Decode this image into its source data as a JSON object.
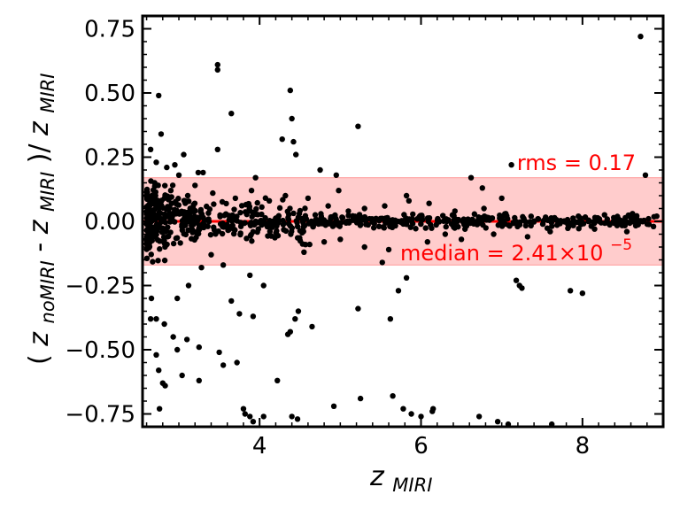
{
  "chart_data": {
    "type": "scatter",
    "xlabel_main": "z",
    "xlabel_sub": "MIRI",
    "ylabel": {
      "open": "(",
      "z1": "z",
      "sub1": "noMIRI",
      "minus": "-",
      "z2": "z",
      "sub2": "MIRI",
      "close": ")/",
      "z3": "z",
      "sub3": "MIRI"
    },
    "xlim": [
      2.55,
      9.0
    ],
    "ylim": [
      -0.8,
      0.8
    ],
    "x_ticks": [
      4,
      6,
      8
    ],
    "x_tick_labels": [
      "4",
      "6",
      "8"
    ],
    "y_ticks": [
      -0.75,
      -0.5,
      -0.25,
      0.0,
      0.25,
      0.5,
      0.75
    ],
    "y_tick_labels": [
      "−0.75",
      "−0.50",
      "−0.25",
      "0.00",
      "0.25",
      "0.50",
      "0.75"
    ],
    "rms": 0.17,
    "median_line_y": 0.0,
    "annotations": {
      "rms_text": "rms = 0.17",
      "median_text": "median = 2.41×10",
      "median_exp": "−5"
    },
    "colors": {
      "points": "#000000",
      "median_line": "#ff0000",
      "rms_band": "#ffcccc",
      "annotation": "#ff0000"
    },
    "points": [
      [
        8.72,
        0.72
      ],
      [
        3.48,
        0.61
      ],
      [
        3.48,
        0.59
      ],
      [
        2.75,
        0.49
      ],
      [
        4.38,
        0.51
      ],
      [
        3.65,
        0.42
      ],
      [
        4.4,
        0.4
      ],
      [
        5.22,
        0.37
      ],
      [
        4.28,
        0.32
      ],
      [
        4.42,
        0.31
      ],
      [
        2.78,
        0.34
      ],
      [
        3.48,
        0.28
      ],
      [
        2.65,
        0.28
      ],
      [
        4.45,
        0.26
      ],
      [
        3.06,
        0.26
      ],
      [
        2.95,
        0.22
      ],
      [
        2.72,
        0.23
      ],
      [
        4.75,
        0.2
      ],
      [
        7.12,
        0.22
      ],
      [
        2.85,
        0.21
      ],
      [
        3.3,
        0.19
      ],
      [
        4.95,
        0.18
      ],
      [
        6.62,
        0.17
      ],
      [
        3.95,
        0.17
      ],
      [
        8.78,
        0.18
      ],
      [
        3.0,
        0.18
      ],
      [
        3.24,
        0.19
      ],
      [
        6.76,
        0.13
      ],
      [
        4.98,
        0.12
      ],
      [
        5.82,
        0.1
      ],
      [
        7.0,
        0.09
      ],
      [
        3.11,
        0.1
      ],
      [
        2.66,
        -0.3
      ],
      [
        2.72,
        -0.38
      ],
      [
        2.82,
        -0.4
      ],
      [
        2.93,
        -0.45
      ],
      [
        2.98,
        -0.5
      ],
      [
        3.04,
        -0.6
      ],
      [
        3.25,
        -0.62
      ],
      [
        2.75,
        -0.58
      ],
      [
        2.8,
        -0.63
      ],
      [
        2.83,
        -0.64
      ],
      [
        2.76,
        -0.73
      ],
      [
        2.72,
        -0.52
      ],
      [
        2.65,
        -0.38
      ],
      [
        3.1,
        -0.46
      ],
      [
        3.25,
        -0.49
      ],
      [
        3.5,
        -0.51
      ],
      [
        3.55,
        -0.56
      ],
      [
        3.72,
        -0.55
      ],
      [
        3.8,
        -0.73
      ],
      [
        3.82,
        -0.75
      ],
      [
        3.88,
        -0.76
      ],
      [
        3.92,
        -0.78
      ],
      [
        4.05,
        -0.76
      ],
      [
        4.22,
        -0.62
      ],
      [
        4.35,
        -0.44
      ],
      [
        4.44,
        -0.38
      ],
      [
        4.48,
        -0.35
      ],
      [
        4.38,
        -0.43
      ],
      [
        4.65,
        -0.41
      ],
      [
        4.4,
        -0.76
      ],
      [
        4.47,
        -0.77
      ],
      [
        4.92,
        -0.72
      ],
      [
        5.25,
        -0.69
      ],
      [
        5.65,
        -0.68
      ],
      [
        5.78,
        -0.73
      ],
      [
        5.88,
        -0.75
      ],
      [
        6.0,
        -0.76
      ],
      [
        6.15,
        -0.73
      ],
      [
        6.14,
        -0.74
      ],
      [
        6.72,
        -0.76
      ],
      [
        6.95,
        -0.78
      ],
      [
        7.08,
        -0.79
      ],
      [
        7.62,
        -0.79
      ],
      [
        5.22,
        -0.34
      ],
      [
        5.62,
        -0.38
      ],
      [
        5.72,
        -0.27
      ],
      [
        7.18,
        -0.23
      ],
      [
        7.22,
        -0.25
      ],
      [
        7.25,
        -0.26
      ],
      [
        7.85,
        -0.27
      ],
      [
        8.0,
        -0.28
      ],
      [
        5.82,
        -0.22
      ],
      [
        5.52,
        -0.16
      ],
      [
        3.65,
        -0.31
      ],
      [
        3.75,
        -0.36
      ],
      [
        3.92,
        -0.37
      ],
      [
        4.05,
        -0.25
      ],
      [
        3.88,
        -0.21
      ],
      [
        3.28,
        -0.18
      ],
      [
        3.12,
        -0.25
      ],
      [
        2.98,
        -0.3
      ],
      [
        3.4,
        -0.13
      ],
      [
        3.55,
        -0.17
      ],
      [
        4.55,
        -0.12
      ],
      [
        4.62,
        -0.09
      ],
      [
        4.8,
        -0.08
      ],
      [
        5.0,
        -0.07
      ],
      [
        5.3,
        -0.1
      ],
      [
        5.6,
        -0.11
      ],
      [
        6.08,
        -0.08
      ],
      [
        6.3,
        -0.05
      ],
      [
        6.5,
        -0.07
      ],
      [
        6.9,
        -0.05
      ],
      [
        7.32,
        -0.06
      ],
      [
        7.6,
        -0.04
      ],
      [
        8.15,
        -0.03
      ],
      [
        8.55,
        -0.04
      ],
      [
        8.88,
        -0.02
      ],
      [
        8.62,
        0.03
      ],
      [
        8.92,
        0.02
      ],
      [
        8.4,
        0.01
      ],
      [
        7.95,
        0.02
      ],
      [
        7.45,
        0.01
      ],
      [
        7.05,
        0.03
      ],
      [
        6.78,
        0.05
      ],
      [
        6.42,
        0.04
      ],
      [
        6.1,
        0.07
      ],
      [
        5.85,
        0.08
      ],
      [
        5.55,
        0.06
      ],
      [
        5.3,
        0.05
      ],
      [
        5.1,
        0.04
      ],
      [
        4.85,
        0.06
      ],
      [
        4.6,
        0.09
      ],
      [
        4.32,
        0.1
      ],
      [
        4.12,
        0.08
      ],
      [
        3.9,
        0.12
      ],
      [
        3.7,
        0.09
      ],
      [
        3.42,
        0.11
      ],
      [
        3.2,
        0.14
      ],
      [
        2.9,
        0.12
      ],
      [
        2.7,
        0.15
      ],
      [
        2.6,
        0.1
      ],
      [
        2.62,
        -0.05
      ]
    ]
  }
}
